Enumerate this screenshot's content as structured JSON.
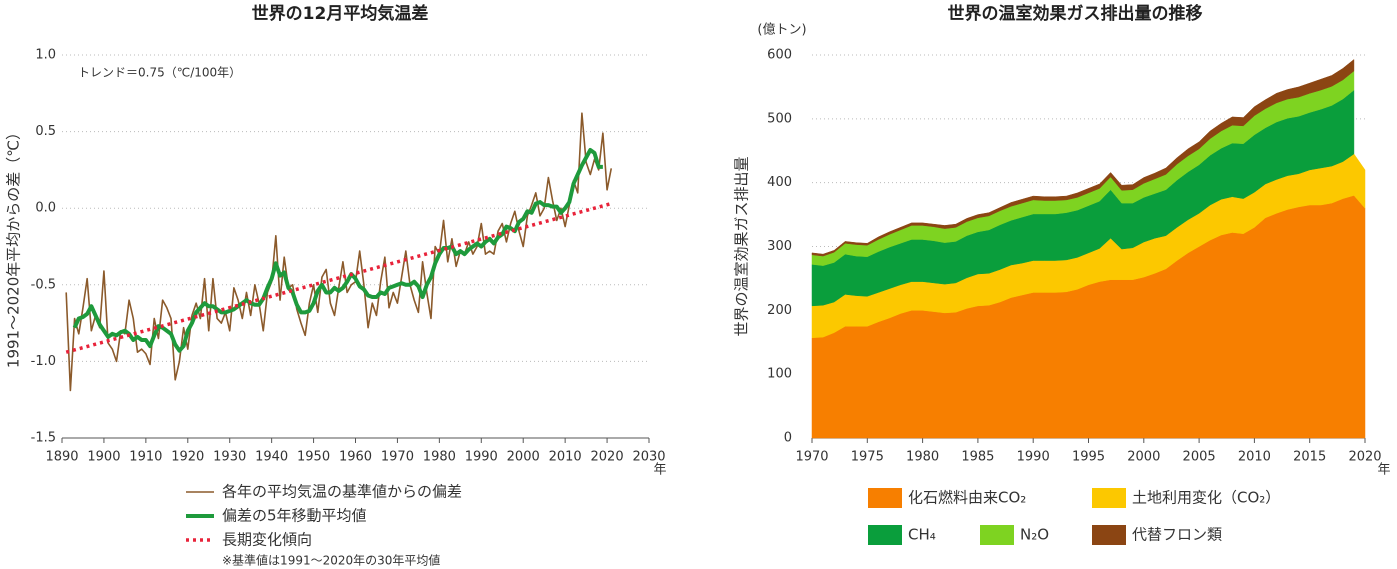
{
  "chart_data": [
    {
      "type": "line",
      "title": "世界の12月平均気温差",
      "y_label": "1991～2020年平均からの差（℃）",
      "x_label": "年",
      "annotation": "トレンド＝0.75（℃/100年）",
      "footnote": "※基準値は1991～2020年の30年平均値",
      "xlim": [
        1890,
        2030
      ],
      "xticks": [
        1890,
        1900,
        1910,
        1920,
        1930,
        1940,
        1950,
        1960,
        1970,
        1980,
        1990,
        2000,
        2010,
        2020,
        2030
      ],
      "ylim": [
        -1.5,
        1.0
      ],
      "yticks": [
        -1.5,
        {
          "value": -1.0,
          "label": "-1.0"
        },
        -0.5,
        {
          "value": 0,
          "label": "0.0"
        },
        0.5,
        {
          "value": 1.0,
          "label": "1.0"
        }
      ],
      "grid": true,
      "x": [
        1891,
        1892,
        1893,
        1894,
        1895,
        1896,
        1897,
        1898,
        1899,
        1900,
        1901,
        1902,
        1903,
        1904,
        1905,
        1906,
        1907,
        1908,
        1909,
        1910,
        1911,
        1912,
        1913,
        1914,
        1915,
        1916,
        1917,
        1918,
        1919,
        1920,
        1921,
        1922,
        1923,
        1924,
        1925,
        1926,
        1927,
        1928,
        1929,
        1930,
        1931,
        1932,
        1933,
        1934,
        1935,
        1936,
        1937,
        1938,
        1939,
        1940,
        1941,
        1942,
        1943,
        1944,
        1945,
        1946,
        1947,
        1948,
        1949,
        1950,
        1951,
        1952,
        1953,
        1954,
        1955,
        1956,
        1957,
        1958,
        1959,
        1960,
        1961,
        1962,
        1963,
        1964,
        1965,
        1966,
        1967,
        1968,
        1969,
        1970,
        1971,
        1972,
        1973,
        1974,
        1975,
        1976,
        1977,
        1978,
        1979,
        1980,
        1981,
        1982,
        1983,
        1984,
        1985,
        1986,
        1987,
        1988,
        1989,
        1990,
        1991,
        1992,
        1993,
        1994,
        1995,
        1996,
        1997,
        1998,
        1999,
        2000,
        2001,
        2002,
        2003,
        2004,
        2005,
        2006,
        2007,
        2008,
        2009,
        2010,
        2011,
        2012,
        2013,
        2014,
        2015,
        2016,
        2017,
        2018,
        2019,
        2020,
        2021
      ],
      "series": [
        {
          "name": "各年の平均気温の基準値からの偏差",
          "color": "#8b5a2b",
          "width": 1.6,
          "dash": false,
          "values": [
            -0.55,
            -1.19,
            -0.72,
            -0.82,
            -0.65,
            -0.46,
            -0.8,
            -0.7,
            -0.78,
            -0.41,
            -0.88,
            -0.92,
            -1.0,
            -0.8,
            -0.82,
            -0.6,
            -0.72,
            -0.94,
            -0.92,
            -0.95,
            -1.02,
            -0.72,
            -0.85,
            -0.6,
            -0.65,
            -0.72,
            -1.12,
            -1.0,
            -0.78,
            -0.92,
            -0.7,
            -0.62,
            -0.72,
            -0.46,
            -0.8,
            -0.46,
            -0.72,
            -0.75,
            -0.68,
            -0.8,
            -0.52,
            -0.6,
            -0.72,
            -0.55,
            -0.7,
            -0.5,
            -0.62,
            -0.8,
            -0.55,
            -0.48,
            -0.18,
            -0.6,
            -0.32,
            -0.52,
            -0.5,
            -0.66,
            -0.75,
            -0.83,
            -0.62,
            -0.5,
            -0.68,
            -0.45,
            -0.4,
            -0.62,
            -0.7,
            -0.52,
            -0.35,
            -0.55,
            -0.5,
            -0.48,
            -0.28,
            -0.5,
            -0.78,
            -0.62,
            -0.7,
            -0.48,
            -0.32,
            -0.65,
            -0.55,
            -0.62,
            -0.45,
            -0.28,
            -0.5,
            -0.6,
            -0.68,
            -0.35,
            -0.55,
            -0.72,
            -0.25,
            -0.3,
            -0.08,
            -0.35,
            -0.2,
            -0.38,
            -0.28,
            -0.3,
            -0.22,
            -0.3,
            -0.25,
            -0.1,
            -0.3,
            -0.28,
            -0.3,
            -0.15,
            -0.1,
            -0.22,
            -0.1,
            -0.02,
            -0.15,
            -0.25,
            -0.05,
            0.02,
            0.1,
            -0.05,
            0.0,
            0.2,
            0.05,
            -0.08,
            0.0,
            -0.12,
            0.02,
            0.18,
            0.1,
            0.62,
            0.3,
            0.22,
            0.32,
            0.25,
            0.49,
            0.12,
            0.26
          ]
        },
        {
          "name": "偏差の5年移動平均値",
          "color": "#1e9a3c",
          "width": 4,
          "dash": false,
          "values": [
            null,
            null,
            -0.78,
            -0.72,
            -0.71,
            -0.69,
            -0.64,
            -0.7,
            -0.76,
            -0.8,
            -0.84,
            -0.82,
            -0.83,
            -0.81,
            -0.8,
            -0.82,
            -0.86,
            -0.84,
            -0.86,
            -0.86,
            -0.9,
            -0.83,
            -0.77,
            -0.78,
            -0.8,
            -0.82,
            -0.89,
            -0.93,
            -0.9,
            -0.8,
            -0.75,
            -0.68,
            -0.65,
            -0.62,
            -0.64,
            -0.64,
            -0.66,
            -0.68,
            -0.68,
            -0.67,
            -0.66,
            -0.64,
            -0.62,
            -0.6,
            -0.62,
            -0.63,
            -0.63,
            -0.59,
            -0.52,
            -0.46,
            -0.36,
            -0.44,
            -0.42,
            -0.52,
            -0.55,
            -0.63,
            -0.68,
            -0.68,
            -0.67,
            -0.62,
            -0.54,
            -0.5,
            -0.55,
            -0.55,
            -0.52,
            -0.54,
            -0.52,
            -0.48,
            -0.43,
            -0.46,
            -0.51,
            -0.53,
            -0.57,
            -0.58,
            -0.58,
            -0.55,
            -0.56,
            -0.52,
            -0.51,
            -0.5,
            -0.49,
            -0.5,
            -0.5,
            -0.48,
            -0.51,
            -0.58,
            -0.5,
            -0.45,
            -0.36,
            -0.3,
            -0.26,
            -0.26,
            -0.25,
            -0.3,
            -0.28,
            -0.3,
            -0.27,
            -0.25,
            -0.23,
            -0.25,
            -0.22,
            -0.2,
            -0.23,
            -0.19,
            -0.17,
            -0.12,
            -0.13,
            -0.15,
            -0.09,
            -0.07,
            -0.02,
            -0.03,
            0.03,
            0.04,
            0.02,
            0.02,
            0.01,
            0.01,
            -0.03,
            0.0,
            0.04,
            0.16,
            0.22,
            0.28,
            0.33,
            0.38,
            0.36,
            0.27,
            0.27,
            null,
            null
          ]
        },
        {
          "name": "長期変化傾向",
          "color": "#e8233a",
          "width": 3.5,
          "dash": true,
          "x": [
            1891,
            2021
          ],
          "values": [
            -0.94,
            0.03
          ]
        }
      ]
    },
    {
      "type": "area",
      "stacked": true,
      "title": "世界の温室効果ガス排出量の推移",
      "y_label": "世界の温室効果ガス排出量",
      "unit": "(億トン)",
      "x_label": "年",
      "xlim": [
        1970,
        2020
      ],
      "xticks": [
        1970,
        1975,
        1980,
        1985,
        1990,
        1995,
        2000,
        2005,
        2010,
        2015,
        2020
      ],
      "ylim": [
        0,
        600
      ],
      "yticks": [
        0,
        100,
        200,
        300,
        400,
        500,
        600
      ],
      "grid": true,
      "x": [
        1970,
        1971,
        1972,
        1973,
        1974,
        1975,
        1976,
        1977,
        1978,
        1979,
        1980,
        1981,
        1982,
        1983,
        1984,
        1985,
        1986,
        1987,
        1988,
        1989,
        1990,
        1991,
        1992,
        1993,
        1994,
        1995,
        1996,
        1997,
        1998,
        1999,
        2000,
        2001,
        2002,
        2003,
        2004,
        2005,
        2006,
        2007,
        2008,
        2009,
        2010,
        2011,
        2012,
        2013,
        2014,
        2015,
        2016,
        2017,
        2018,
        2019,
        2020
      ],
      "series": [
        {
          "name": "化石燃料由来CO₂",
          "color": "#f77f00",
          "values": [
            157,
            158,
            165,
            175,
            175,
            175,
            182,
            188,
            195,
            200,
            200,
            198,
            196,
            197,
            203,
            207,
            208,
            213,
            220,
            224,
            228,
            228,
            228,
            229,
            233,
            240,
            245,
            248,
            248,
            248,
            252,
            258,
            265,
            278,
            290,
            300,
            310,
            318,
            322,
            320,
            330,
            345,
            352,
            358,
            362,
            365,
            365,
            368,
            375,
            380,
            360
          ]
        },
        {
          "name": "土地利用変化（CO₂）",
          "color": "#fcc800",
          "values": [
            50,
            50,
            48,
            50,
            48,
            47,
            46,
            46,
            45,
            45,
            45,
            45,
            45,
            46,
            48,
            50,
            50,
            51,
            51,
            50,
            50,
            50,
            50,
            50,
            50,
            50,
            52,
            65,
            48,
            50,
            55,
            55,
            52,
            52,
            52,
            52,
            55,
            56,
            56,
            55,
            55,
            53,
            53,
            53,
            52,
            55,
            58,
            58,
            58,
            65,
            60
          ]
        },
        {
          "name": "CH₄",
          "color": "#0a9e3c",
          "values": [
            65,
            62,
            62,
            63,
            62,
            62,
            64,
            65,
            65,
            66,
            66,
            66,
            65,
            65,
            66,
            66,
            68,
            70,
            70,
            72,
            73,
            73,
            73,
            74,
            74,
            74,
            74,
            76,
            72,
            70,
            70,
            70,
            72,
            74,
            75,
            76,
            78,
            80,
            84,
            86,
            90,
            88,
            90,
            90,
            90,
            90,
            92,
            95,
            98,
            100,
            null
          ]
        },
        {
          "name": "N₂O",
          "color": "#7ed321",
          "values": [
            15,
            15,
            16,
            17,
            18,
            18,
            19,
            20,
            21,
            22,
            22,
            22,
            22,
            22,
            22,
            22,
            22,
            22,
            22,
            22,
            22,
            21,
            21,
            20,
            20,
            20,
            20,
            20,
            20,
            21,
            22,
            23,
            24,
            25,
            25,
            25,
            26,
            27,
            28,
            28,
            30,
            30,
            30,
            30,
            30,
            30,
            30,
            30,
            30,
            30,
            null
          ]
        },
        {
          "name": "代替フロン類",
          "color": "#8b4513",
          "values": [
            3,
            3,
            3,
            3,
            3,
            3,
            4,
            4,
            4,
            4,
            4,
            4,
            5,
            5,
            5,
            5,
            5,
            5,
            6,
            6,
            6,
            6,
            6,
            6,
            7,
            7,
            7,
            7,
            8,
            8,
            9,
            9,
            10,
            10,
            11,
            11,
            12,
            12,
            13,
            13,
            14,
            14,
            15,
            15,
            16,
            16,
            17,
            17,
            18,
            18,
            null
          ]
        }
      ]
    }
  ]
}
